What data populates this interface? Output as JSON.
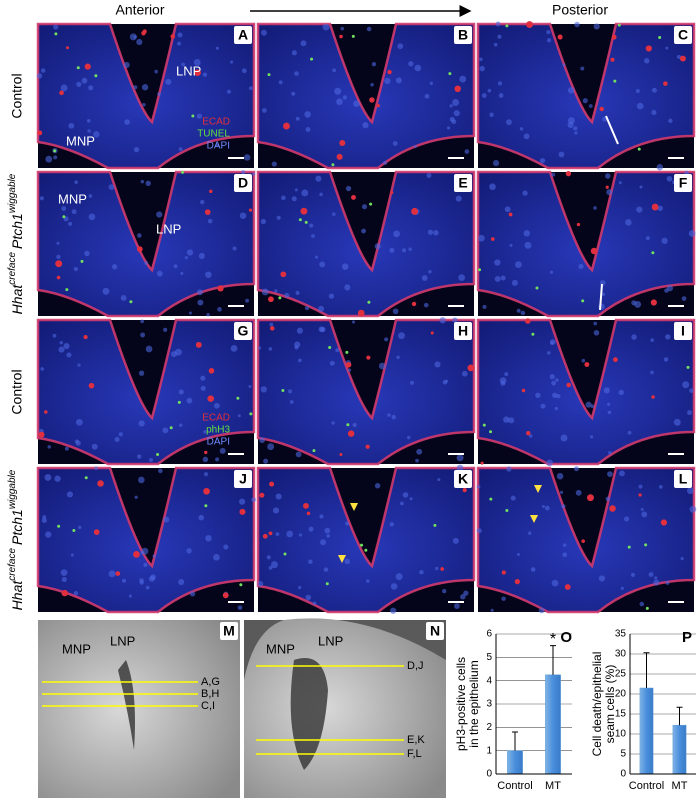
{
  "header": {
    "left": "Anterior",
    "right": "Posterior"
  },
  "row_labels": [
    "Control",
    {
      "gene1": "Hhat",
      "sup1": "creface",
      "gene2": "Ptch1",
      "sup2": "wiggable"
    },
    "Control",
    {
      "gene1": "Hhat",
      "sup1": "creface",
      "gene2": "Ptch1",
      "sup2": "wiggable"
    }
  ],
  "panels": [
    {
      "letter": "A",
      "labels": [
        "MNP",
        "LNP"
      ],
      "legend": [
        "ECAD",
        "TUNEL",
        "DAPI"
      ]
    },
    {
      "letter": "B"
    },
    {
      "letter": "C"
    },
    {
      "letter": "D",
      "labels": [
        "MNP",
        "LNP"
      ]
    },
    {
      "letter": "E"
    },
    {
      "letter": "F"
    },
    {
      "letter": "G",
      "legend": [
        "ECAD",
        "phH3",
        "DAPI"
      ]
    },
    {
      "letter": "H"
    },
    {
      "letter": "I"
    },
    {
      "letter": "J"
    },
    {
      "letter": "K"
    },
    {
      "letter": "L"
    },
    {
      "letter": "M",
      "labels": [
        "MNP",
        "LNP"
      ],
      "lines": [
        "A,G",
        "B,H",
        "C,I"
      ]
    },
    {
      "letter": "N",
      "labels": [
        "MNP",
        "LNP"
      ],
      "lines": [
        "D,J",
        "E,K",
        "F,L"
      ]
    }
  ],
  "chart_data": [
    {
      "type": "bar",
      "letter": "O",
      "ylabel": [
        "pH3-positive cells",
        "in the epithelium"
      ],
      "categories": [
        "Control",
        "MT"
      ],
      "values": [
        1.0,
        4.25
      ],
      "errors": [
        0.8,
        1.25
      ],
      "color": "#5b9bd5",
      "ylim": [
        0,
        6
      ],
      "yticks": [
        0,
        1,
        2,
        3,
        4,
        5,
        6
      ],
      "grid": true,
      "annotation": "*"
    },
    {
      "type": "bar",
      "letter": "P",
      "ylabel": [
        "Cell death/epithelial",
        "seam cells (%)"
      ],
      "categories": [
        "Control",
        "MT"
      ],
      "values": [
        21.5,
        12.2
      ],
      "errors": [
        8.8,
        4.5
      ],
      "color": "#5b9bd5",
      "ylim": [
        0,
        35
      ],
      "yticks": [
        0,
        5,
        10,
        15,
        20,
        25,
        30,
        35
      ],
      "grid": true
    }
  ]
}
